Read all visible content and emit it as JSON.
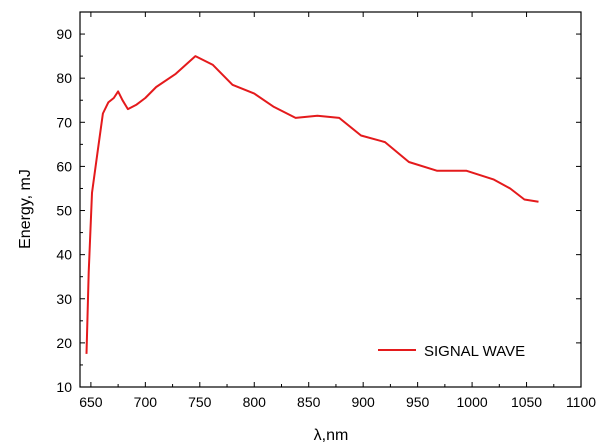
{
  "chart_data": {
    "type": "line",
    "title": "",
    "xlabel": "λ,nm",
    "ylabel": "Energy, mJ",
    "xlim": [
      640,
      1100
    ],
    "ylim": [
      10,
      95
    ],
    "xticks": [
      650,
      700,
      750,
      800,
      850,
      900,
      950,
      1000,
      1050,
      1100
    ],
    "yticks": [
      10,
      20,
      30,
      40,
      50,
      60,
      70,
      80,
      90
    ],
    "grid": false,
    "legend_position": "bottom-right",
    "series": [
      {
        "name": "SIGNAL WAVE",
        "color": "#e41a1c",
        "x": [
          646,
          648,
          651,
          656,
          661,
          666,
          671,
          675,
          679,
          684,
          692,
          700,
          710,
          728,
          746,
          762,
          780,
          800,
          818,
          838,
          858,
          878,
          898,
          920,
          942,
          968,
          995,
          1020,
          1035,
          1048,
          1061
        ],
        "y": [
          17.5,
          36,
          54,
          63,
          72,
          74.5,
          75.5,
          77,
          75,
          73,
          74,
          75.5,
          78,
          81,
          85,
          83,
          78.5,
          76.5,
          73.5,
          71,
          71.5,
          71,
          67,
          65.5,
          61,
          59,
          59,
          57,
          55,
          52.5,
          52
        ]
      }
    ]
  }
}
